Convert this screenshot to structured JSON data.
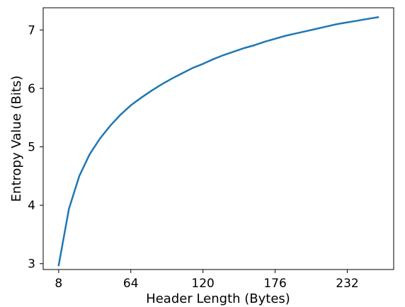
{
  "chart_data": {
    "type": "line",
    "title": "",
    "xlabel": "Header Length (Bytes)",
    "ylabel": "Entropy Value (Bits)",
    "xlim": [
      -4,
      268
    ],
    "ylim": [
      2.9,
      7.38
    ],
    "xticks": [
      8,
      64,
      120,
      176,
      232
    ],
    "yticks": [
      3,
      4,
      5,
      6,
      7
    ],
    "grid": false,
    "legend": "none",
    "line_color": "#1f77b4",
    "series": [
      {
        "x": [
          8,
          16,
          24,
          32,
          40,
          48,
          56,
          64,
          72,
          80,
          88,
          96,
          104,
          112,
          120,
          128,
          136,
          144,
          152,
          160,
          168,
          176,
          184,
          192,
          200,
          208,
          216,
          224,
          232,
          240,
          248,
          256
        ],
        "values": [
          2.97,
          3.94,
          4.5,
          4.87,
          5.14,
          5.36,
          5.55,
          5.71,
          5.84,
          5.96,
          6.07,
          6.17,
          6.26,
          6.35,
          6.42,
          6.5,
          6.57,
          6.63,
          6.69,
          6.74,
          6.8,
          6.85,
          6.9,
          6.94,
          6.98,
          7.02,
          7.06,
          7.1,
          7.13,
          7.16,
          7.19,
          7.22
        ]
      }
    ]
  }
}
